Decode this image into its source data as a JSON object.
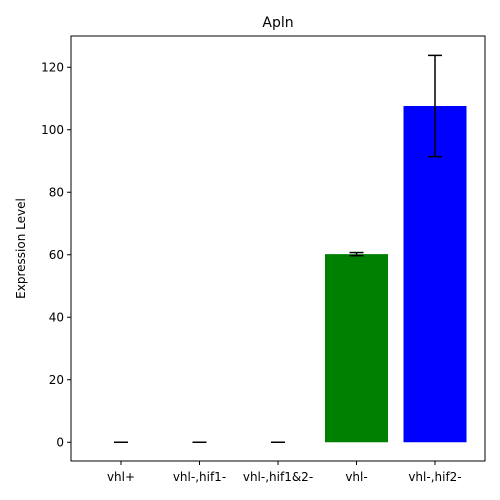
{
  "chart_data": {
    "type": "bar",
    "title": "Apln",
    "xlabel": "",
    "ylabel": "Expression Level",
    "categories": [
      "vhl+",
      "vhl-,hif1-",
      "vhl-,hif1&2-",
      "vhl-",
      "vhl-,hif2-"
    ],
    "values": [
      0,
      0,
      0,
      60.2,
      107.6
    ],
    "errors": [
      0,
      0,
      0,
      0.5,
      16.2
    ],
    "colors": [
      "#ff0000",
      "#ffa500",
      "#ffff00",
      "#008000",
      "#0000ff"
    ],
    "ylim": [
      -6,
      130
    ],
    "yticks": [
      0,
      20,
      40,
      60,
      80,
      100,
      120
    ],
    "grid": false,
    "legend": "none"
  }
}
